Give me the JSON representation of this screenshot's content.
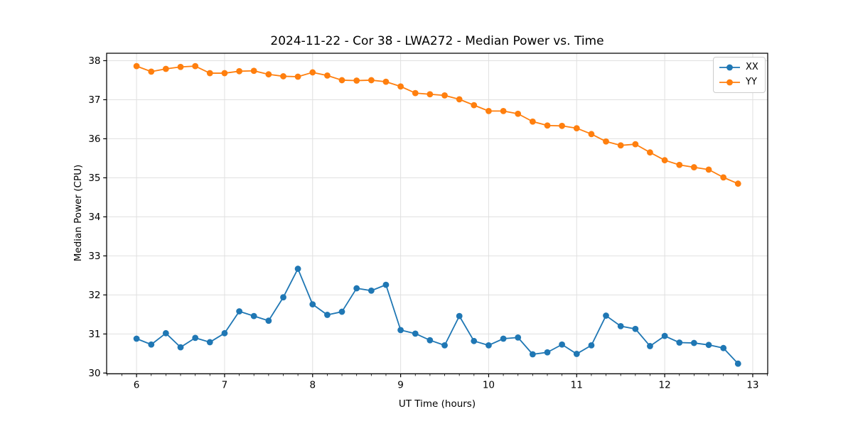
{
  "chart_data": {
    "type": "line",
    "title": "2024-11-22 - Cor 38 - LWA272 - Median Power vs. Time",
    "xlabel": "UT Time (hours)",
    "ylabel": "Median Power (CPU)",
    "xlim": [
      5.66,
      13.17
    ],
    "ylim": [
      29.98,
      38.19
    ],
    "x_ticks": [
      6,
      7,
      8,
      9,
      10,
      11,
      12,
      13
    ],
    "y_ticks": [
      30,
      31,
      32,
      33,
      34,
      35,
      36,
      37,
      38
    ],
    "x_minor_step_hours": 0.16667,
    "grid": true,
    "grid_color": "#e0e0e0",
    "legend_position": "upper right",
    "x": [
      6.0,
      6.167,
      6.333,
      6.5,
      6.667,
      6.833,
      7.0,
      7.167,
      7.333,
      7.5,
      7.667,
      7.833,
      8.0,
      8.167,
      8.333,
      8.5,
      8.667,
      8.833,
      9.0,
      9.167,
      9.333,
      9.5,
      9.667,
      9.833,
      10.0,
      10.167,
      10.333,
      10.5,
      10.667,
      10.833,
      11.0,
      11.167,
      11.333,
      11.5,
      11.667,
      11.833,
      12.0,
      12.167,
      12.333,
      12.5,
      12.667,
      12.833
    ],
    "series": [
      {
        "name": "XX",
        "color": "#1f77b4",
        "values": [
          30.88,
          30.73,
          31.02,
          30.66,
          30.9,
          30.79,
          31.02,
          31.58,
          31.46,
          31.34,
          31.94,
          32.67,
          31.76,
          31.49,
          31.57,
          32.17,
          32.11,
          32.26,
          31.1,
          31.01,
          30.84,
          30.71,
          31.46,
          30.82,
          30.71,
          30.88,
          30.91,
          30.48,
          30.53,
          30.73,
          30.49,
          30.71,
          31.47,
          31.2,
          31.13,
          30.69,
          30.95,
          30.78,
          30.77,
          30.72,
          30.64,
          30.24
        ]
      },
      {
        "name": "YY",
        "color": "#ff7f0e",
        "values": [
          37.86,
          37.72,
          37.79,
          37.84,
          37.86,
          37.68,
          37.68,
          37.73,
          37.74,
          37.65,
          37.6,
          37.59,
          37.7,
          37.62,
          37.5,
          37.49,
          37.5,
          37.46,
          37.34,
          37.17,
          37.14,
          37.11,
          37.01,
          36.86,
          36.71,
          36.71,
          36.64,
          36.44,
          36.34,
          36.33,
          36.27,
          36.12,
          35.93,
          35.83,
          35.86,
          35.65,
          35.45,
          35.33,
          35.27,
          35.21,
          35.01,
          34.85
        ]
      }
    ]
  }
}
